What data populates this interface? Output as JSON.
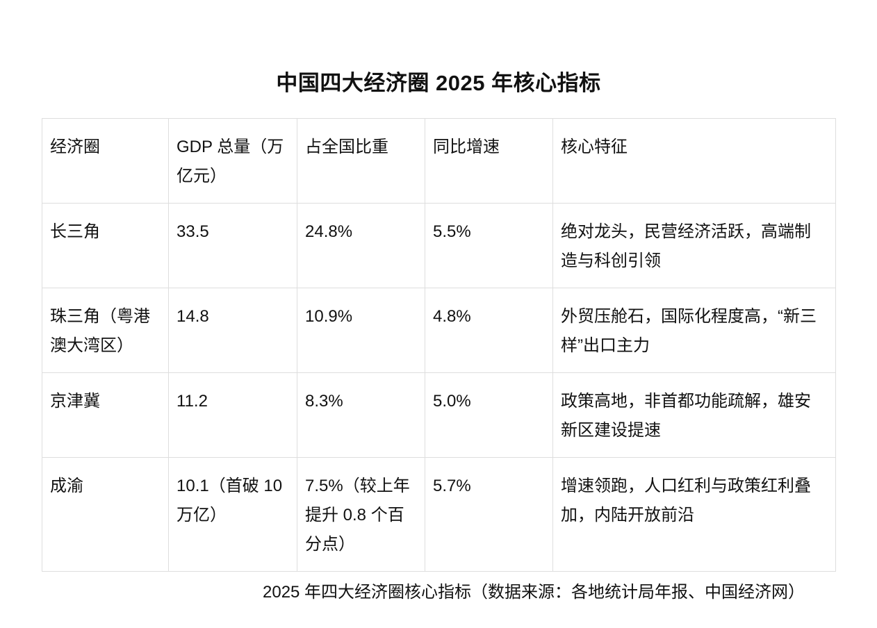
{
  "page": {
    "title": "中国四大经济圈 2025 年核心指标"
  },
  "table": {
    "columns": [
      "经济圈",
      "GDP 总量（万亿元）",
      "占全国比重",
      "同比增速",
      "核心特征"
    ],
    "rows": [
      {
        "name": "长三角",
        "gdp": "33.5",
        "share": "24.8%",
        "growth": "5.5%",
        "feature": "绝对龙头，民营经济活跃，高端制造与科创引领"
      },
      {
        "name": "珠三角（粤港澳大湾区）",
        "gdp": "14.8",
        "share": "10.9%",
        "growth": "4.8%",
        "feature": "外贸压舱石，国际化程度高，“新三样”出口主力"
      },
      {
        "name": "京津冀",
        "gdp": "11.2",
        "share": "8.3%",
        "growth": "5.0%",
        "feature": "政策高地，非首都功能疏解，雄安新区建设提速"
      },
      {
        "name": "成渝",
        "gdp": "10.1（首破 10 万亿）",
        "share": "7.5%（较上年提升 0.8 个百分点）",
        "growth": "5.7%",
        "feature": "增速领跑，人口红利与政策红利叠加，内陆开放前沿"
      }
    ]
  },
  "caption": "2025 年四大经济圈核心指标（数据来源：各地统计局年报、中国经济网）"
}
